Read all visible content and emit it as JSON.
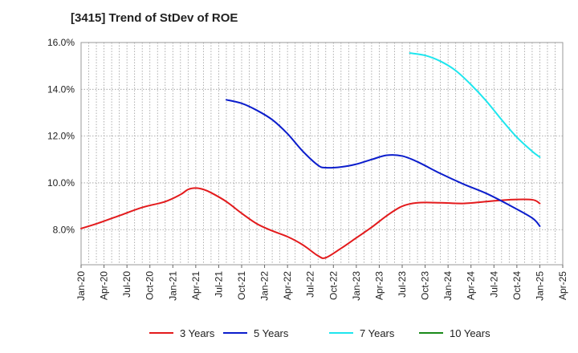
{
  "chart_data": {
    "type": "line",
    "title": "[3415]  Trend of StDev of ROE",
    "xlabel": "",
    "ylabel": "",
    "ylim": [
      6.5,
      16.0
    ],
    "yticks": [
      8.0,
      10.0,
      12.0,
      14.0,
      16.0
    ],
    "ytick_labels": [
      "8.0%",
      "10.0%",
      "12.0%",
      "14.0%",
      "16.0%"
    ],
    "xlim": [
      "2020-01",
      "2025-04"
    ],
    "xtick_labels": [
      "Jan-20",
      "Apr-20",
      "Jul-20",
      "Oct-20",
      "Jan-21",
      "Apr-21",
      "Jul-21",
      "Oct-21",
      "Jan-22",
      "Apr-22",
      "Jul-22",
      "Oct-22",
      "Jan-23",
      "Apr-23",
      "Jul-23",
      "Oct-23",
      "Jan-24",
      "Apr-24",
      "Jul-24",
      "Oct-24",
      "Jan-25",
      "Apr-25"
    ],
    "grid": "vertical dotted lines monthly, horizontal dotted lines at y ticks",
    "legend_position": "bottom",
    "series": [
      {
        "name": "3 Years",
        "color": "#e31a1c",
        "points": [
          [
            "2020-01",
            8.05
          ],
          [
            "2020-03",
            8.25
          ],
          [
            "2020-06",
            8.6
          ],
          [
            "2020-09",
            8.95
          ],
          [
            "2020-12",
            9.2
          ],
          [
            "2021-02",
            9.5
          ],
          [
            "2021-03",
            9.72
          ],
          [
            "2021-04",
            9.78
          ],
          [
            "2021-05",
            9.72
          ],
          [
            "2021-06",
            9.58
          ],
          [
            "2021-08",
            9.2
          ],
          [
            "2021-10",
            8.7
          ],
          [
            "2021-12",
            8.25
          ],
          [
            "2022-02",
            7.95
          ],
          [
            "2022-04",
            7.7
          ],
          [
            "2022-06",
            7.35
          ],
          [
            "2022-08",
            6.88
          ],
          [
            "2022-09",
            6.8
          ],
          [
            "2022-11",
            7.2
          ],
          [
            "2023-01",
            7.65
          ],
          [
            "2023-03",
            8.1
          ],
          [
            "2023-05",
            8.6
          ],
          [
            "2023-07",
            9.0
          ],
          [
            "2023-09",
            9.15
          ],
          [
            "2023-12",
            9.15
          ],
          [
            "2024-03",
            9.12
          ],
          [
            "2024-06",
            9.2
          ],
          [
            "2024-09",
            9.28
          ],
          [
            "2024-12",
            9.28
          ],
          [
            "2025-01",
            9.12
          ]
        ]
      },
      {
        "name": "5 Years",
        "color": "#0b1dcc",
        "points": [
          [
            "2021-08",
            13.55
          ],
          [
            "2021-10",
            13.4
          ],
          [
            "2021-12",
            13.1
          ],
          [
            "2022-02",
            12.7
          ],
          [
            "2022-04",
            12.1
          ],
          [
            "2022-06",
            11.35
          ],
          [
            "2022-08",
            10.75
          ],
          [
            "2022-09",
            10.65
          ],
          [
            "2022-11",
            10.68
          ],
          [
            "2023-01",
            10.8
          ],
          [
            "2023-03",
            11.0
          ],
          [
            "2023-05",
            11.18
          ],
          [
            "2023-07",
            11.15
          ],
          [
            "2023-09",
            10.9
          ],
          [
            "2023-12",
            10.4
          ],
          [
            "2024-03",
            9.95
          ],
          [
            "2024-06",
            9.55
          ],
          [
            "2024-09",
            9.05
          ],
          [
            "2024-12",
            8.5
          ],
          [
            "2025-01",
            8.15
          ]
        ]
      },
      {
        "name": "7 Years",
        "color": "#1ee6ee",
        "points": [
          [
            "2023-08",
            15.55
          ],
          [
            "2023-10",
            15.45
          ],
          [
            "2023-12",
            15.2
          ],
          [
            "2024-02",
            14.8
          ],
          [
            "2024-04",
            14.2
          ],
          [
            "2024-06",
            13.5
          ],
          [
            "2024-08",
            12.7
          ],
          [
            "2024-10",
            11.95
          ],
          [
            "2024-12",
            11.35
          ],
          [
            "2025-01",
            11.1
          ]
        ]
      },
      {
        "name": "10 Years",
        "color": "#1a8a1a",
        "points": []
      }
    ]
  }
}
